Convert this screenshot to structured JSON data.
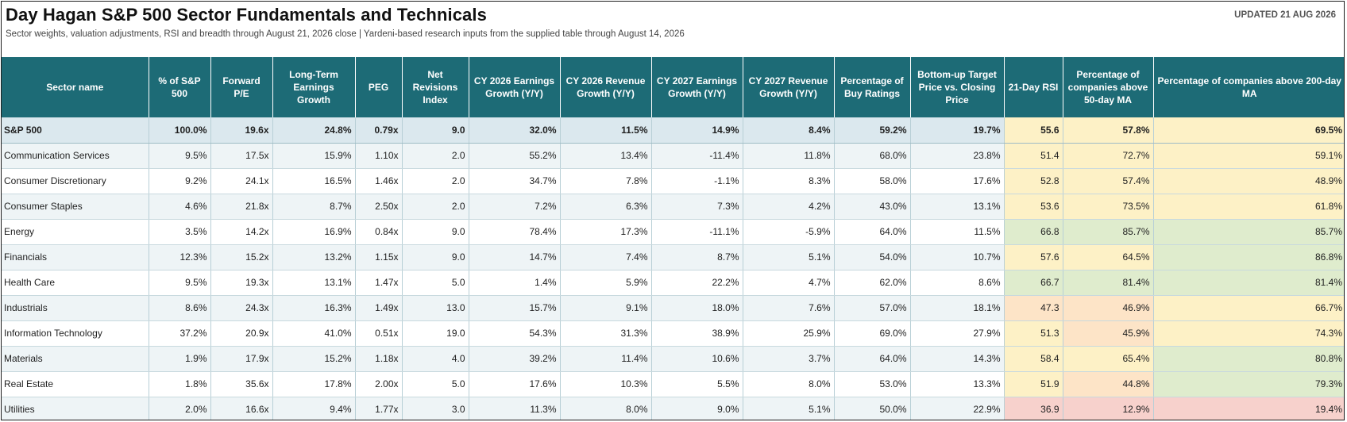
{
  "header": {
    "title": "Day Hagan S&P 500 Sector Fundamentals and Technicals",
    "subtitle": "Sector weights, valuation adjustments, RSI and breadth through August 21, 2026 close | Yardeni-based research inputs from the supplied table through August 14, 2026",
    "updated": "UPDATED 21 AUG 2026"
  },
  "colors": {
    "header_bg": "#1d6b76",
    "heat_yellow": "#fdf1c6",
    "heat_green": "#dfeccd",
    "heat_orange": "#fde4c7",
    "heat_red": "#f7d1cc"
  },
  "table": {
    "columns": [
      "Sector name",
      "% of S&P 500",
      "Forward P/E",
      "Long-Term Earnings Growth",
      "PEG",
      "Net Revisions Index",
      "CY 2026 Earnings Growth (Y/Y)",
      "CY 2026 Revenue Growth (Y/Y)",
      "CY 2027 Earnings Growth (Y/Y)",
      "CY 2027 Revenue Growth (Y/Y)",
      "Percentage of Buy Ratings",
      "Bottom-up Target Price vs. Closing Price",
      "21-Day RSI",
      "Percentage of companies above 50-day MA",
      "Percentage of companies above 200-day MA"
    ],
    "rows": [
      {
        "cells": [
          "S&P 500",
          "100.0%",
          "19.6x",
          "24.8%",
          "0.79x",
          "9.0",
          "32.0%",
          "11.5%",
          "14.9%",
          "8.4%",
          "59.2%",
          "19.7%",
          "55.6",
          "57.8%",
          "69.5%"
        ],
        "heat": [
          "yellow",
          "yellow",
          "yellow"
        ]
      },
      {
        "cells": [
          "Communication Services",
          "9.5%",
          "17.5x",
          "15.9%",
          "1.10x",
          "2.0",
          "55.2%",
          "13.4%",
          "-11.4%",
          "11.8%",
          "68.0%",
          "23.8%",
          "51.4",
          "72.7%",
          "59.1%"
        ],
        "heat": [
          "yellow",
          "yellow",
          "yellow"
        ]
      },
      {
        "cells": [
          "Consumer Discretionary",
          "9.2%",
          "24.1x",
          "16.5%",
          "1.46x",
          "2.0",
          "34.7%",
          "7.8%",
          "-1.1%",
          "8.3%",
          "58.0%",
          "17.6%",
          "52.8",
          "57.4%",
          "48.9%"
        ],
        "heat": [
          "yellow",
          "yellow",
          "yellow"
        ]
      },
      {
        "cells": [
          "Consumer Staples",
          "4.6%",
          "21.8x",
          "8.7%",
          "2.50x",
          "2.0",
          "7.2%",
          "6.3%",
          "7.3%",
          "4.2%",
          "43.0%",
          "13.1%",
          "53.6",
          "73.5%",
          "61.8%"
        ],
        "heat": [
          "yellow",
          "yellow",
          "yellow"
        ]
      },
      {
        "cells": [
          "Energy",
          "3.5%",
          "14.2x",
          "16.9%",
          "0.84x",
          "9.0",
          "78.4%",
          "17.3%",
          "-11.1%",
          "-5.9%",
          "64.0%",
          "11.5%",
          "66.8",
          "85.7%",
          "85.7%"
        ],
        "heat": [
          "green",
          "green",
          "green"
        ]
      },
      {
        "cells": [
          "Financials",
          "12.3%",
          "15.2x",
          "13.2%",
          "1.15x",
          "9.0",
          "14.7%",
          "7.4%",
          "8.7%",
          "5.1%",
          "54.0%",
          "10.7%",
          "57.6",
          "64.5%",
          "86.8%"
        ],
        "heat": [
          "yellow",
          "yellow",
          "green"
        ]
      },
      {
        "cells": [
          "Health Care",
          "9.5%",
          "19.3x",
          "13.1%",
          "1.47x",
          "5.0",
          "1.4%",
          "5.9%",
          "22.2%",
          "4.7%",
          "62.0%",
          "8.6%",
          "66.7",
          "81.4%",
          "81.4%"
        ],
        "heat": [
          "green",
          "green",
          "green"
        ]
      },
      {
        "cells": [
          "Industrials",
          "8.6%",
          "24.3x",
          "16.3%",
          "1.49x",
          "13.0",
          "15.7%",
          "9.1%",
          "18.0%",
          "7.6%",
          "57.0%",
          "18.1%",
          "47.3",
          "46.9%",
          "66.7%"
        ],
        "heat": [
          "orange",
          "orange",
          "yellow"
        ]
      },
      {
        "cells": [
          "Information Technology",
          "37.2%",
          "20.9x",
          "41.0%",
          "0.51x",
          "19.0",
          "54.3%",
          "31.3%",
          "38.9%",
          "25.9%",
          "69.0%",
          "27.9%",
          "51.3",
          "45.9%",
          "74.3%"
        ],
        "heat": [
          "yellow",
          "orange",
          "yellow"
        ]
      },
      {
        "cells": [
          "Materials",
          "1.9%",
          "17.9x",
          "15.2%",
          "1.18x",
          "4.0",
          "39.2%",
          "11.4%",
          "10.6%",
          "3.7%",
          "64.0%",
          "14.3%",
          "58.4",
          "65.4%",
          "80.8%"
        ],
        "heat": [
          "yellow",
          "yellow",
          "green"
        ]
      },
      {
        "cells": [
          "Real Estate",
          "1.8%",
          "35.6x",
          "17.8%",
          "2.00x",
          "5.0",
          "17.6%",
          "10.3%",
          "5.5%",
          "8.0%",
          "53.0%",
          "13.3%",
          "51.9",
          "44.8%",
          "79.3%"
        ],
        "heat": [
          "yellow",
          "orange",
          "green"
        ]
      },
      {
        "cells": [
          "Utilities",
          "2.0%",
          "16.6x",
          "9.4%",
          "1.77x",
          "3.0",
          "11.3%",
          "8.0%",
          "9.0%",
          "5.1%",
          "50.0%",
          "22.9%",
          "36.9",
          "12.9%",
          "19.4%"
        ],
        "heat": [
          "red",
          "red",
          "red"
        ]
      }
    ]
  }
}
